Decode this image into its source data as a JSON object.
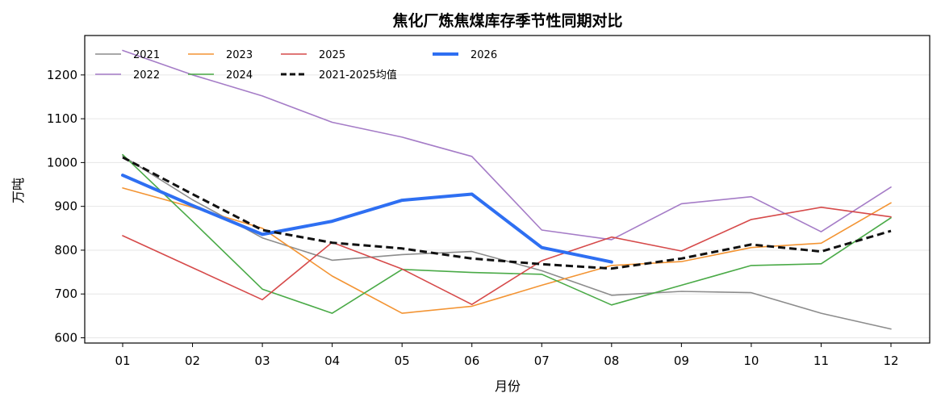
{
  "chart_data": {
    "type": "line",
    "title": "焦化厂炼焦煤库存季节性同期对比",
    "xlabel": "月份",
    "ylabel": "万吨",
    "categories": [
      "01",
      "02",
      "03",
      "04",
      "05",
      "06",
      "07",
      "08",
      "09",
      "10",
      "11",
      "12"
    ],
    "ylim": [
      588,
      1290
    ],
    "yticks": [
      600,
      700,
      800,
      900,
      1000,
      1100,
      1200
    ],
    "grid": "horizontal",
    "legend_position": "top-left",
    "series": [
      {
        "name": "2021",
        "color": "#8c8c8c",
        "style": "solid",
        "width": 1.6,
        "values": [
          1015,
          915,
          828,
          777,
          790,
          797,
          753,
          697,
          706,
          703,
          656,
          620
        ]
      },
      {
        "name": "2022",
        "color": "#a57cc7",
        "style": "solid",
        "width": 1.6,
        "values": [
          1256,
          1200,
          1152,
          1092,
          1058,
          1014,
          846,
          824,
          906,
          922,
          842,
          944
        ]
      },
      {
        "name": "2023",
        "color": "#f39433",
        "style": "solid",
        "width": 1.6,
        "values": [
          942,
          898,
          850,
          741,
          656,
          672,
          720,
          765,
          774,
          806,
          816,
          908
        ]
      },
      {
        "name": "2024",
        "color": "#4aaa47",
        "style": "solid",
        "width": 1.6,
        "values": [
          1018,
          866,
          711,
          656,
          756,
          749,
          745,
          675,
          720,
          765,
          769,
          874
        ]
      },
      {
        "name": "2025",
        "color": "#d64a4a",
        "style": "solid",
        "width": 1.6,
        "values": [
          833,
          760,
          687,
          818,
          757,
          676,
          776,
          830,
          798,
          870,
          898,
          876
        ]
      },
      {
        "name": "2021-2025均值",
        "color": "#111111",
        "style": "dashed",
        "width": 3,
        "values": [
          1012,
          928,
          846,
          817,
          804,
          781,
          768,
          758,
          781,
          813,
          797,
          844
        ]
      },
      {
        "name": "2026",
        "color": "#2e6ff2",
        "style": "solid",
        "width": 4,
        "values": [
          971,
          902,
          836,
          866,
          914,
          928,
          806,
          773,
          null,
          null,
          null,
          null
        ]
      }
    ],
    "legend_order": [
      "2021",
      "2022",
      "2023",
      "2024",
      "2025",
      "2021-2025均值",
      "2026"
    ]
  }
}
